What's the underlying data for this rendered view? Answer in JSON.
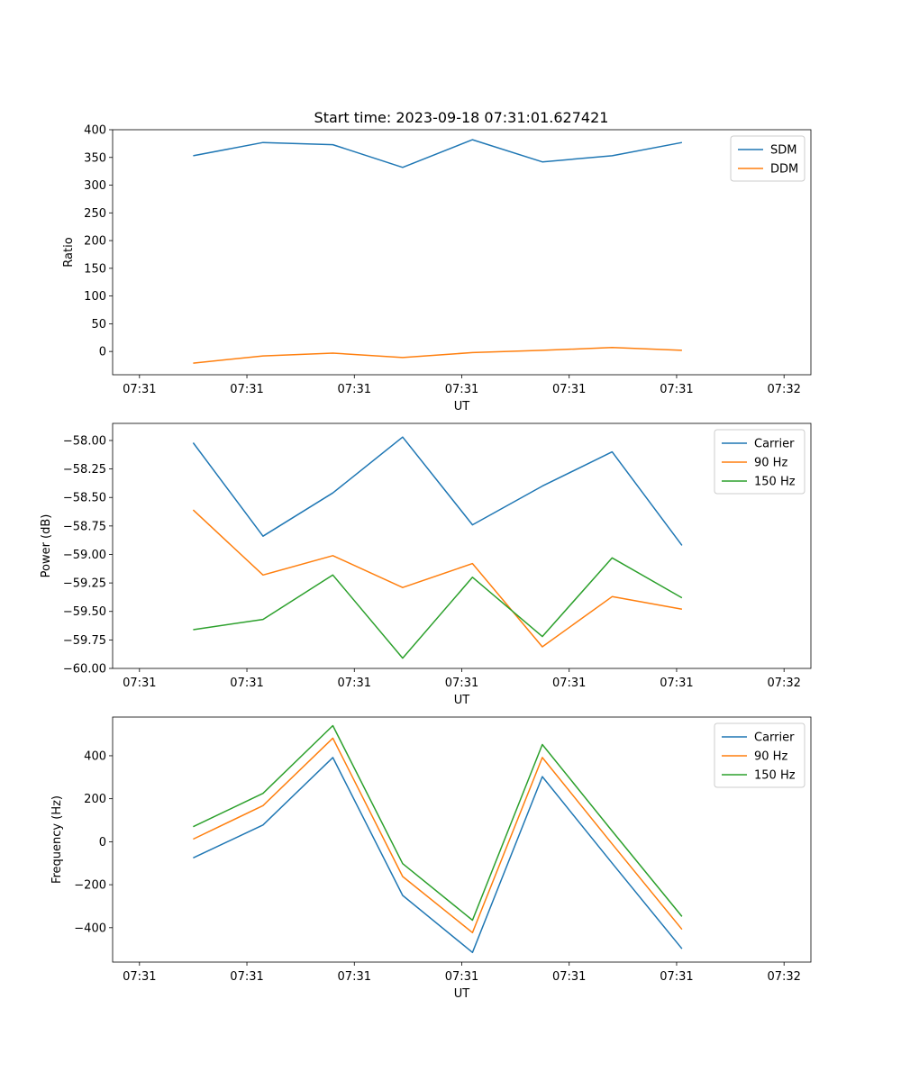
{
  "figure_title": "Start time: 2023-09-18 07:31:01.627421",
  "colors": {
    "blue": "#1f77b4",
    "orange": "#ff7f0e",
    "green": "#2ca02c"
  },
  "chart_data": [
    {
      "type": "line",
      "title": "Start time: 2023-09-18 07:31:01.627421",
      "xlabel": "UT",
      "ylabel": "Ratio",
      "xlim": [
        -0.5,
        12.5
      ],
      "ylim": [
        -42,
        400
      ],
      "yticks": [
        0,
        50,
        100,
        150,
        200,
        250,
        300,
        350,
        400
      ],
      "ytick_labels": [
        "0",
        "50",
        "100",
        "150",
        "200",
        "250",
        "300",
        "350",
        "400"
      ],
      "xticks": [
        0,
        2,
        4,
        6,
        8,
        10,
        12
      ],
      "xtick_labels": [
        "07:31",
        "07:31",
        "07:31",
        "07:31",
        "07:31",
        "07:31",
        "07:32"
      ],
      "x": [
        1,
        2.3,
        3.6,
        4.9,
        6.2,
        7.5,
        8.8,
        10.1
      ],
      "legend_position": "top-right",
      "series": [
        {
          "name": "SDM",
          "color": "#1f77b4",
          "values": [
            353,
            377,
            373,
            332,
            382,
            342,
            353,
            377
          ]
        },
        {
          "name": "DDM",
          "color": "#ff7f0e",
          "values": [
            -21,
            -8,
            -3,
            -11,
            -2,
            2,
            7,
            2
          ]
        }
      ]
    },
    {
      "type": "line",
      "title": "",
      "xlabel": "UT",
      "ylabel": "Power (dB)",
      "xlim": [
        -0.5,
        12.5
      ],
      "ylim": [
        -60.0,
        -57.85
      ],
      "yticks": [
        -60.0,
        -59.75,
        -59.5,
        -59.25,
        -59.0,
        -58.75,
        -58.5,
        -58.25,
        -58.0
      ],
      "ytick_labels": [
        "−60.00",
        "−59.75",
        "−59.50",
        "−59.25",
        "−59.00",
        "−58.75",
        "−58.50",
        "−58.25",
        "−58.00"
      ],
      "xticks": [
        0,
        2,
        4,
        6,
        8,
        10,
        12
      ],
      "xtick_labels": [
        "07:31",
        "07:31",
        "07:31",
        "07:31",
        "07:31",
        "07:31",
        "07:32"
      ],
      "x": [
        1,
        2.3,
        3.6,
        4.9,
        6.2,
        7.5,
        8.8,
        10.1
      ],
      "legend_position": "top-right",
      "series": [
        {
          "name": "Carrier",
          "color": "#1f77b4",
          "values": [
            -58.02,
            -58.84,
            -58.46,
            -57.97,
            -58.74,
            -58.4,
            -58.1,
            -58.92
          ]
        },
        {
          "name": "90 Hz",
          "color": "#ff7f0e",
          "values": [
            -58.61,
            -59.18,
            -59.01,
            -59.29,
            -59.08,
            -59.81,
            -59.37,
            -59.48
          ]
        },
        {
          "name": "150 Hz",
          "color": "#2ca02c",
          "values": [
            -59.66,
            -59.57,
            -59.18,
            -59.91,
            -59.2,
            -59.72,
            -59.03,
            -59.38
          ]
        }
      ]
    },
    {
      "type": "line",
      "title": "",
      "xlabel": "UT",
      "ylabel": "Frequency (Hz)",
      "xlim": [
        -0.5,
        12.5
      ],
      "ylim": [
        -560,
        580
      ],
      "yticks": [
        -400,
        -200,
        0,
        200,
        400
      ],
      "ytick_labels": [
        "−400",
        "−200",
        "0",
        "200",
        "400"
      ],
      "xticks": [
        0,
        2,
        4,
        6,
        8,
        10,
        12
      ],
      "xtick_labels": [
        "07:31",
        "07:31",
        "07:31",
        "07:31",
        "07:31",
        "07:31",
        "07:32"
      ],
      "x": [
        1,
        2.3,
        3.6,
        4.9,
        6.2,
        7.5,
        8.8,
        10.1
      ],
      "legend_position": "top-right",
      "series": [
        {
          "name": "Carrier",
          "color": "#1f77b4",
          "values": [
            -75,
            78,
            392,
            -250,
            -515,
            303,
            -100,
            -498
          ]
        },
        {
          "name": "90 Hz",
          "color": "#ff7f0e",
          "values": [
            12,
            168,
            482,
            -162,
            -423,
            392,
            -10,
            -408
          ]
        },
        {
          "name": "150 Hz",
          "color": "#2ca02c",
          "values": [
            70,
            225,
            540,
            -102,
            -365,
            452,
            50,
            -348
          ]
        }
      ]
    }
  ]
}
